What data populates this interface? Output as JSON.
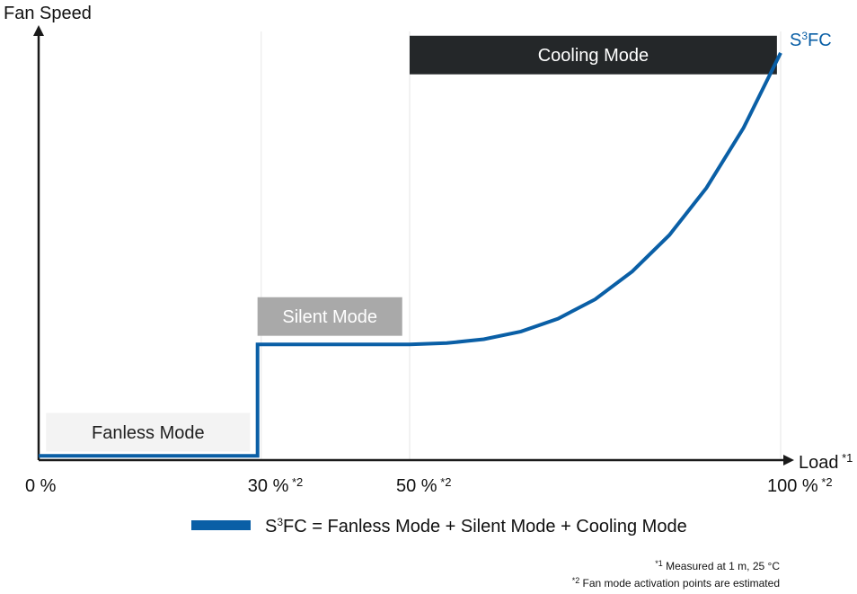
{
  "chart_data": {
    "type": "line",
    "ylabel": "Fan Speed",
    "xlabel": "Load",
    "xlabel_note": "*1",
    "xlim": [
      0,
      100
    ],
    "ylim": [
      0,
      100
    ],
    "ticks": [
      {
        "x": 0,
        "label": "0 %",
        "note": ""
      },
      {
        "x": 30,
        "label": "30 %",
        "note": "*2"
      },
      {
        "x": 50,
        "label": "50 %",
        "note": "*2"
      },
      {
        "x": 100,
        "label": "100 %",
        "note": "*2"
      }
    ],
    "gridlines_x": [
      30,
      50,
      100
    ],
    "series": [
      {
        "name_prefix": "S",
        "name_sup": "3",
        "name_suffix": "FC",
        "color": "#0a5fa6",
        "x": [
          0,
          29.5,
          29.5,
          50,
          55,
          60,
          65,
          70,
          75,
          80,
          85,
          90,
          95,
          100
        ],
        "y": [
          1,
          1,
          27,
          27,
          27.3,
          28.2,
          30,
          33,
          37.5,
          44,
          52.5,
          63.5,
          77.5,
          95
        ]
      }
    ],
    "modes": [
      {
        "label": "Fanless Mode",
        "x0": 1,
        "x1": 28.5,
        "y0": 2,
        "y1": 11,
        "bg": "#f3f3f3",
        "fg": "#1f1f1f"
      },
      {
        "label": "Silent Mode",
        "x0": 29.5,
        "x1": 49,
        "y0": 29,
        "y1": 38,
        "bg": "#a9a9a9",
        "fg": "#ffffff"
      },
      {
        "label": "Cooling Mode",
        "x0": 50,
        "x1": 99.5,
        "y0": 90,
        "y1": 99,
        "bg": "#242729",
        "fg": "#ffffff"
      }
    ],
    "legend": {
      "prefix": "S",
      "sup": "3",
      "suffix": "FC = Fanless Mode + Silent Mode + Cooling Mode",
      "position": "bottom-center"
    }
  },
  "footnotes": [
    {
      "mark": "*1",
      "text": "Measured at 1 m, 25 °C"
    },
    {
      "mark": "*2",
      "text": "Fan mode activation points are estimated"
    }
  ]
}
